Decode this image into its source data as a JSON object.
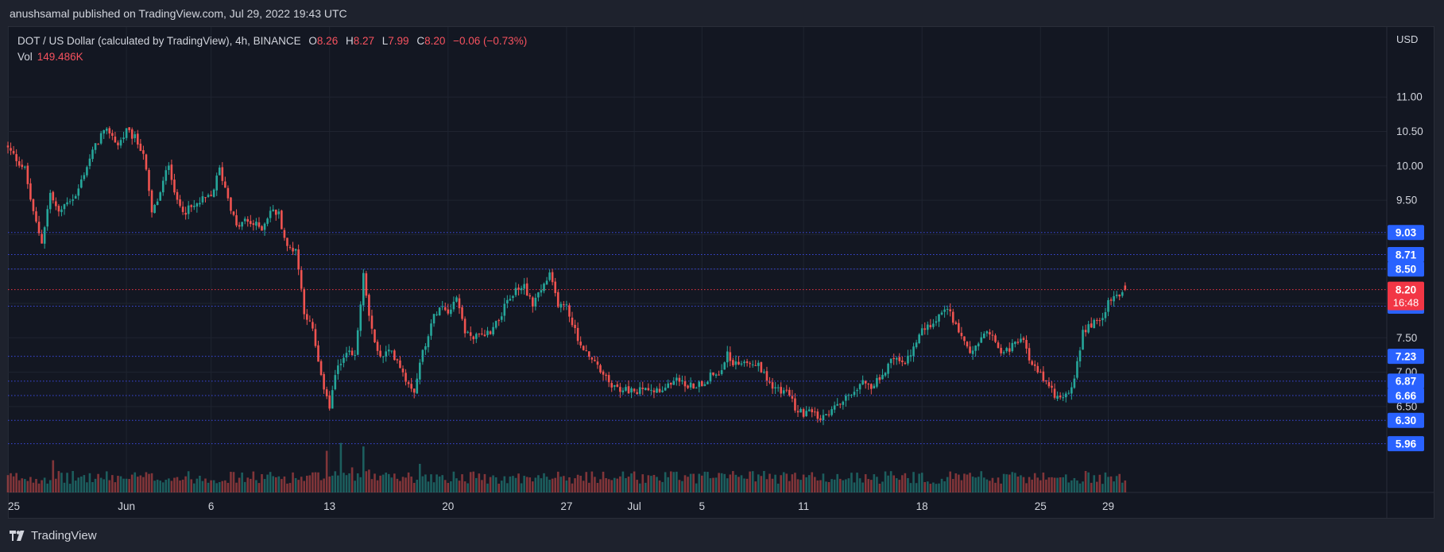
{
  "header": {
    "published_text": "anushsamal published on TradingView.com, Jul 29, 2022 19:43 UTC"
  },
  "legend": {
    "symbol": "DOT / US Dollar (calculated by TradingView), 4h, BINANCE",
    "open_label": "O",
    "open": "8.26",
    "high_label": "H",
    "high": "8.27",
    "low_label": "L",
    "low": "7.99",
    "close_label": "C",
    "close": "8.20",
    "change": "−0.06 (−0.73%)",
    "vol_label": "Vol",
    "vol": "149.486K"
  },
  "axis": {
    "currency": "USD"
  },
  "footer": {
    "brand": "TradingView"
  },
  "colors": {
    "background": "#131722",
    "up": "#26a69a",
    "down": "#ef5350",
    "level_line": "#3b49df",
    "level_badge": "#2962ff",
    "current_badge": "#f23645"
  },
  "chart_data": {
    "type": "candlestick",
    "timeframe": "4h",
    "x_range": [
      "2022-05-25",
      "2022-07-29"
    ],
    "ylim": [
      5.5,
      11.2
    ],
    "y_ticks": [
      6.5,
      7.0,
      7.5,
      9.5,
      10.0,
      10.5,
      11.0
    ],
    "x_ticks": [
      {
        "label": "25",
        "day": 0
      },
      {
        "label": "Jun",
        "day": 7
      },
      {
        "label": "6",
        "day": 12
      },
      {
        "label": "13",
        "day": 19
      },
      {
        "label": "20",
        "day": 26
      },
      {
        "label": "27",
        "day": 33
      },
      {
        "label": "Jul",
        "day": 37
      },
      {
        "label": "5",
        "day": 41
      },
      {
        "label": "11",
        "day": 47
      },
      {
        "label": "18",
        "day": 54
      },
      {
        "label": "25",
        "day": 61
      },
      {
        "label": "29",
        "day": 65
      }
    ],
    "levels": [
      {
        "value": 9.03,
        "label": "9.03"
      },
      {
        "value": 8.71,
        "label": "8.71"
      },
      {
        "value": 8.5,
        "label": "8.50"
      },
      {
        "value": 7.96,
        "label": "7.96"
      },
      {
        "value": 7.23,
        "label": "7.23"
      },
      {
        "value": 6.87,
        "label": "6.87"
      },
      {
        "value": 6.66,
        "label": "6.66"
      },
      {
        "value": 6.3,
        "label": "6.30"
      },
      {
        "value": 5.96,
        "label": "5.96"
      }
    ],
    "current": {
      "value": 8.2,
      "label": "8.20",
      "countdown": "16:48"
    },
    "close_path": [
      [
        0,
        10.25
      ],
      [
        1,
        9.95
      ],
      [
        1.5,
        9.3
      ],
      [
        2,
        8.9
      ],
      [
        2.5,
        9.6
      ],
      [
        3,
        9.3
      ],
      [
        3.5,
        9.5
      ],
      [
        4,
        9.55
      ],
      [
        4.5,
        9.9
      ],
      [
        5,
        10.2
      ],
      [
        5.5,
        10.45
      ],
      [
        6,
        10.5
      ],
      [
        6.5,
        10.3
      ],
      [
        7,
        10.5
      ],
      [
        7.5,
        10.4
      ],
      [
        8,
        10.2
      ],
      [
        8.5,
        9.3
      ],
      [
        9,
        9.6
      ],
      [
        9.5,
        10.05
      ],
      [
        10,
        9.45
      ],
      [
        10.5,
        9.35
      ],
      [
        11,
        9.4
      ],
      [
        11.5,
        9.5
      ],
      [
        12,
        9.55
      ],
      [
        12.5,
        9.95
      ],
      [
        13,
        9.55
      ],
      [
        13.5,
        9.1
      ],
      [
        14,
        9.2
      ],
      [
        15,
        9.1
      ],
      [
        15.5,
        9.35
      ],
      [
        16,
        9.3
      ],
      [
        16.5,
        8.8
      ],
      [
        17,
        8.8
      ],
      [
        17.5,
        7.9
      ],
      [
        18,
        7.6
      ],
      [
        18.5,
        6.9
      ],
      [
        19,
        6.5
      ],
      [
        19.5,
        7.1
      ],
      [
        20,
        7.3
      ],
      [
        20.5,
        7.2
      ],
      [
        21,
        8.4
      ],
      [
        21.5,
        7.6
      ],
      [
        22,
        7.2
      ],
      [
        22.5,
        7.3
      ],
      [
        23,
        7.2
      ],
      [
        23.5,
        6.9
      ],
      [
        24,
        6.75
      ],
      [
        24.5,
        7.3
      ],
      [
        25,
        7.7
      ],
      [
        25.5,
        8.0
      ],
      [
        26,
        7.9
      ],
      [
        26.5,
        8.1
      ],
      [
        27,
        7.6
      ],
      [
        27.5,
        7.5
      ],
      [
        28,
        7.55
      ],
      [
        28.5,
        7.6
      ],
      [
        29,
        7.8
      ],
      [
        29.5,
        8.0
      ],
      [
        30,
        8.2
      ],
      [
        30.5,
        8.25
      ],
      [
        31,
        8.0
      ],
      [
        31.5,
        8.2
      ],
      [
        32,
        8.4
      ],
      [
        32.5,
        8.0
      ],
      [
        33,
        7.95
      ],
      [
        33.5,
        7.6
      ],
      [
        34,
        7.3
      ],
      [
        34.5,
        7.2
      ],
      [
        35,
        7.0
      ],
      [
        35.5,
        6.85
      ],
      [
        36,
        6.75
      ],
      [
        36.5,
        6.75
      ],
      [
        37,
        6.7
      ],
      [
        37.5,
        6.75
      ],
      [
        38,
        6.8
      ],
      [
        38.5,
        6.7
      ],
      [
        39,
        6.8
      ],
      [
        39.5,
        6.95
      ],
      [
        40,
        6.8
      ],
      [
        40.5,
        6.8
      ],
      [
        41,
        6.85
      ],
      [
        41.5,
        6.95
      ],
      [
        42,
        7.0
      ],
      [
        42.5,
        7.25
      ],
      [
        43,
        7.1
      ],
      [
        43.5,
        7.2
      ],
      [
        44,
        7.15
      ],
      [
        44.5,
        7.05
      ],
      [
        45,
        6.85
      ],
      [
        45.5,
        6.75
      ],
      [
        46,
        6.7
      ],
      [
        46.5,
        6.5
      ],
      [
        47,
        6.4
      ],
      [
        47.5,
        6.4
      ],
      [
        48,
        6.3
      ],
      [
        48.5,
        6.4
      ],
      [
        49,
        6.5
      ],
      [
        49.5,
        6.65
      ],
      [
        50,
        6.75
      ],
      [
        50.5,
        6.9
      ],
      [
        51,
        6.8
      ],
      [
        51.5,
        6.9
      ],
      [
        52,
        7.1
      ],
      [
        52.5,
        7.25
      ],
      [
        53,
        7.1
      ],
      [
        53.5,
        7.35
      ],
      [
        54,
        7.6
      ],
      [
        54.5,
        7.7
      ],
      [
        55,
        7.85
      ],
      [
        55.5,
        7.9
      ],
      [
        56,
        7.7
      ],
      [
        56.5,
        7.4
      ],
      [
        57,
        7.3
      ],
      [
        57.5,
        7.5
      ],
      [
        58,
        7.6
      ],
      [
        58.5,
        7.35
      ],
      [
        59,
        7.3
      ],
      [
        59.5,
        7.4
      ],
      [
        60,
        7.45
      ],
      [
        60.5,
        7.1
      ],
      [
        61,
        6.95
      ],
      [
        61.5,
        6.75
      ],
      [
        62,
        6.65
      ],
      [
        62.5,
        6.7
      ],
      [
        63,
        6.85
      ],
      [
        63.5,
        7.6
      ],
      [
        64,
        7.7
      ],
      [
        64.5,
        7.75
      ],
      [
        65,
        8.0
      ],
      [
        65.5,
        8.12
      ],
      [
        66,
        8.2
      ]
    ],
    "volume_spikes": [
      {
        "day": 2.6,
        "value": 0.45
      },
      {
        "day": 18.9,
        "value": 0.55
      },
      {
        "day": 19.7,
        "value": 0.65
      },
      {
        "day": 21.0,
        "value": 0.55
      },
      {
        "day": 24.3,
        "value": 0.4
      },
      {
        "day": 63.6,
        "value": 0.3
      }
    ]
  }
}
